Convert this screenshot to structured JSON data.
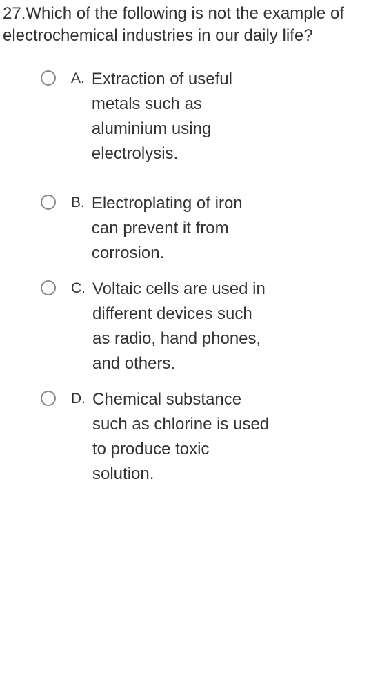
{
  "question": {
    "number": "27.",
    "text": "Which of the following is not the example of electrochemical industries in our daily life?"
  },
  "options": [
    {
      "letter": "A.",
      "text": "Extraction of useful metals such as aluminium using electrolysis."
    },
    {
      "letter": "B.",
      "text": "Electroplating of iron can prevent it from corrosion."
    },
    {
      "letter": "C.",
      "text": "Voltaic cells are used in different devices such as radio, hand phones, and others."
    },
    {
      "letter": "D.",
      "text": "Chemical substance such as chlorine is used to produce toxic solution."
    }
  ],
  "colors": {
    "text": "#333333",
    "radio_border": "#8a8a8a",
    "background": "#ffffff"
  },
  "typography": {
    "question_fontsize": 24,
    "option_text_fontsize": 24,
    "option_letter_fontsize": 21,
    "font_family": "Arial"
  }
}
